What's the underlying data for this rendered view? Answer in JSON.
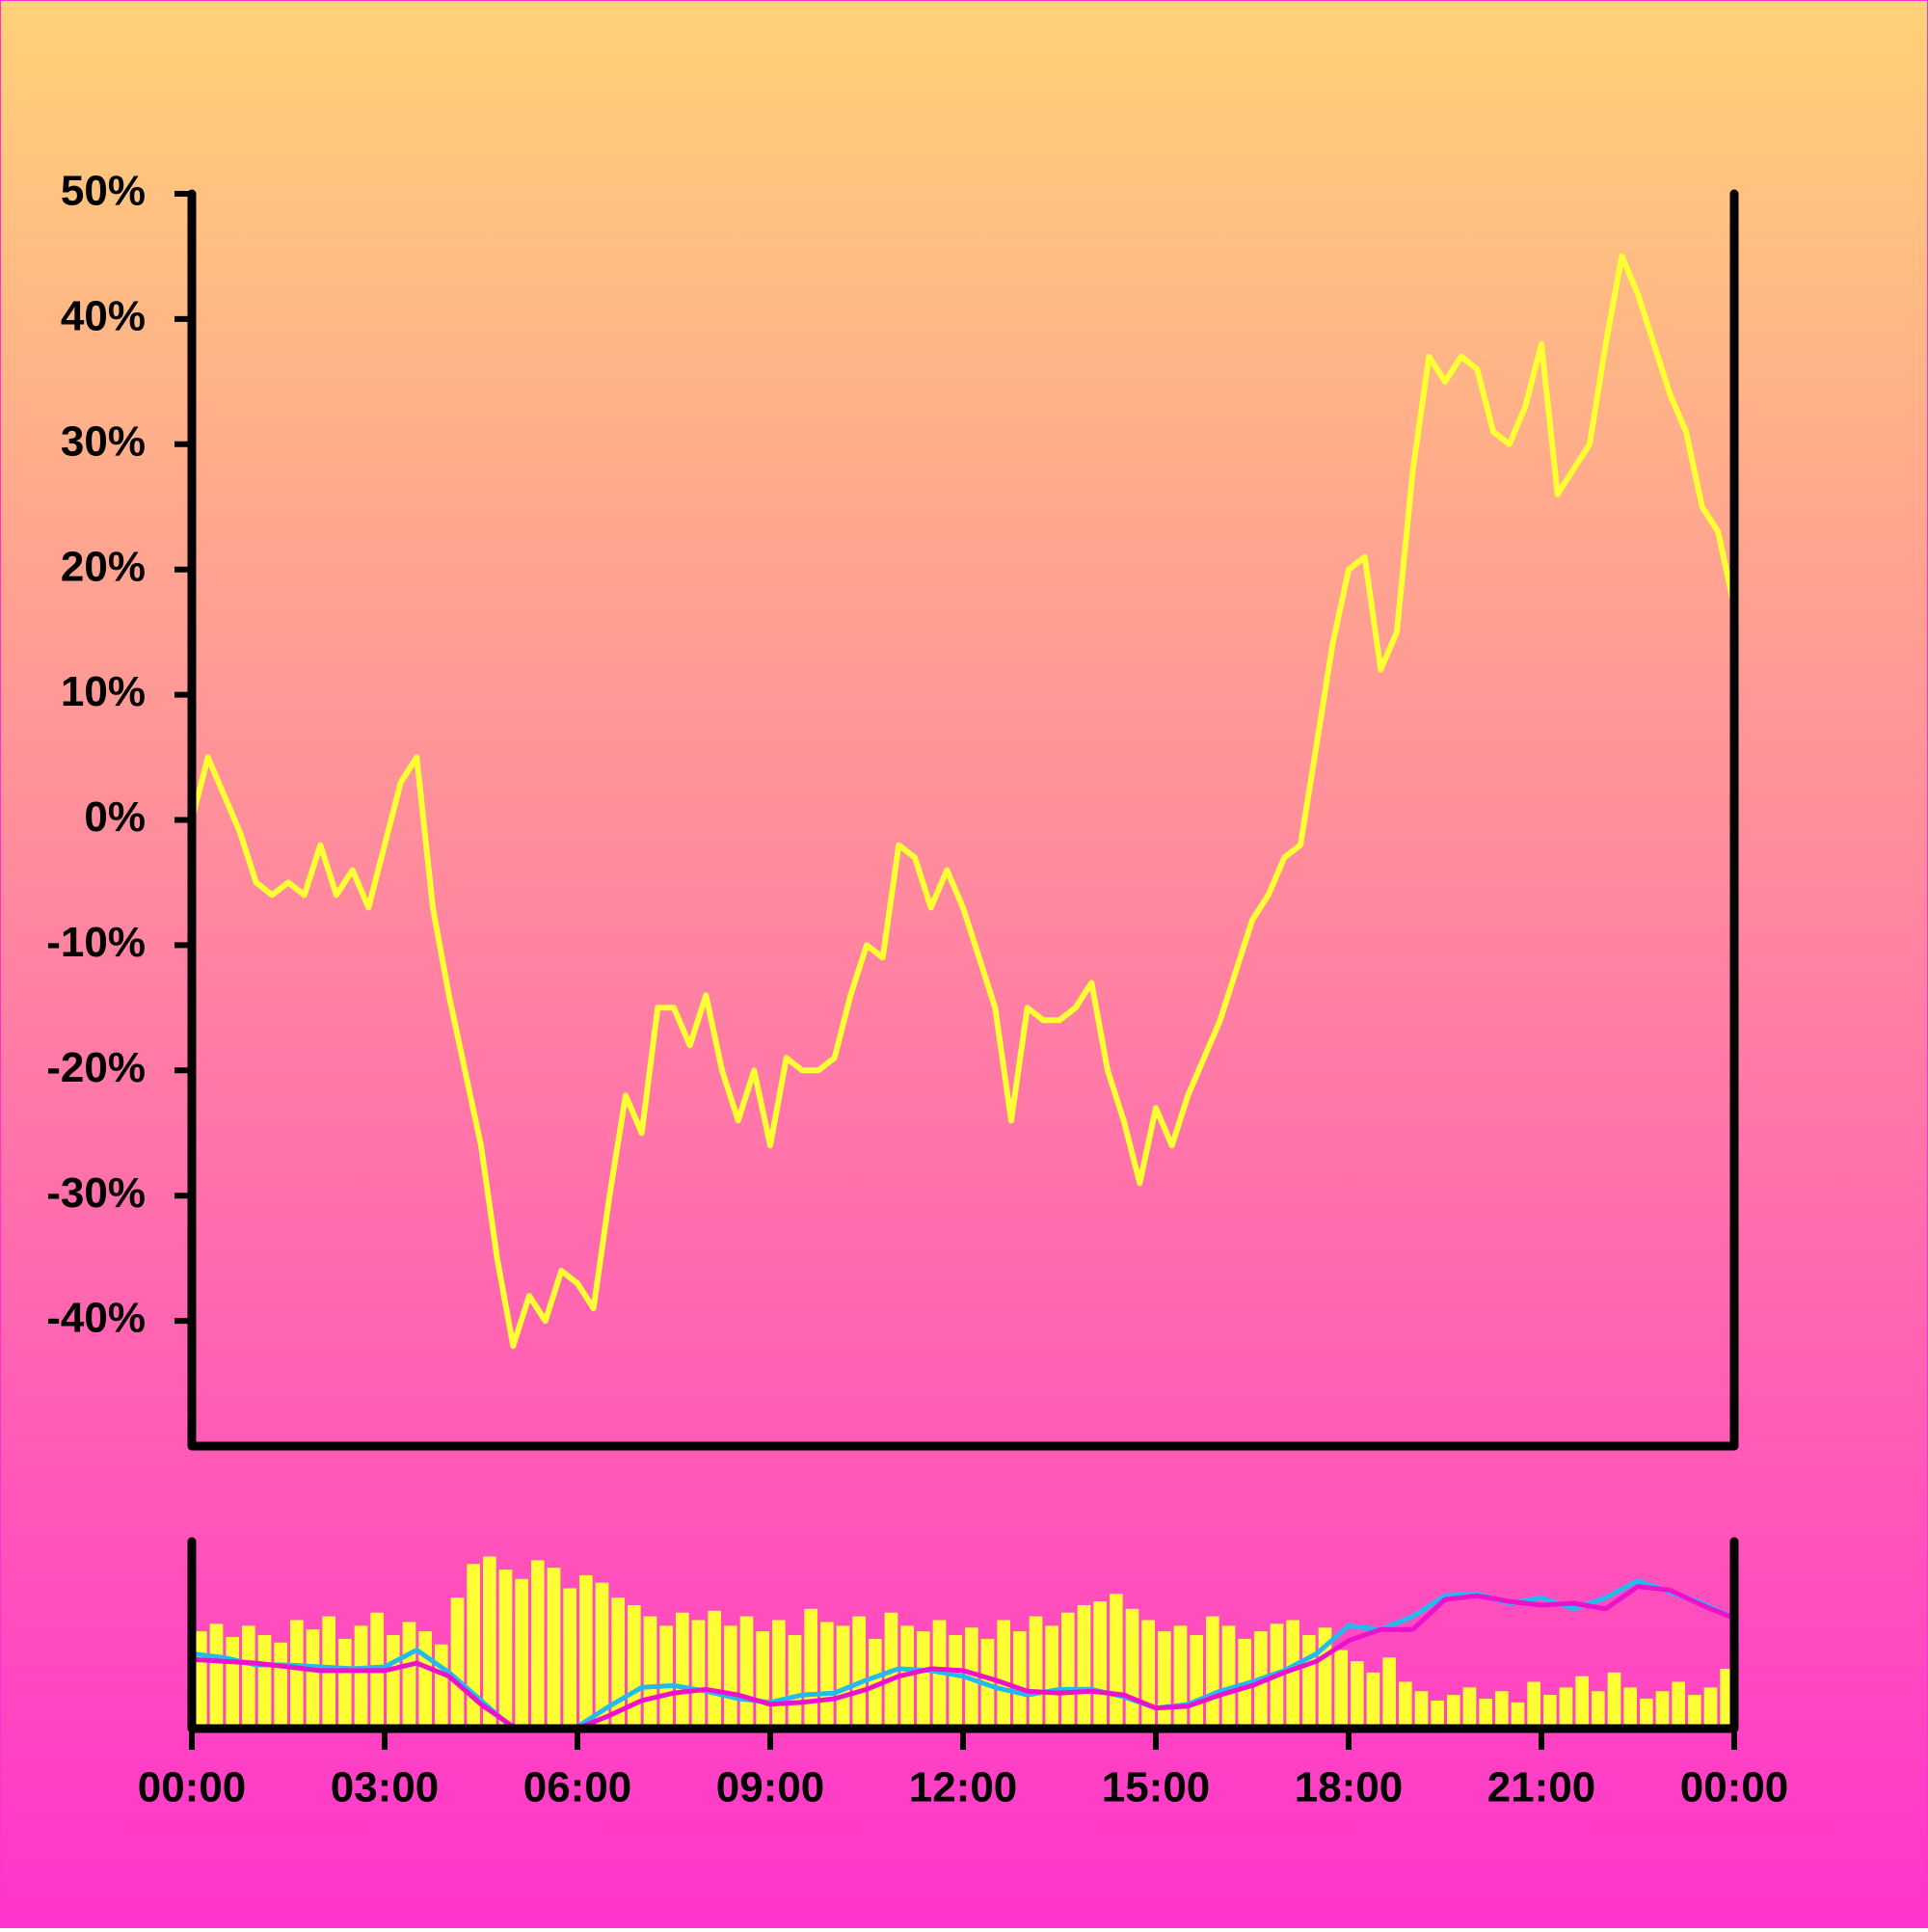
{
  "chart_data": [
    {
      "type": "line",
      "color": "#ffff33",
      "x": [
        0,
        0.25,
        0.5,
        0.75,
        1,
        1.25,
        1.5,
        1.75,
        2,
        2.25,
        2.5,
        2.75,
        3,
        3.25,
        3.5,
        3.75,
        4,
        4.25,
        4.5,
        4.75,
        5,
        5.25,
        5.5,
        5.75,
        6,
        6.25,
        6.5,
        6.75,
        7,
        7.25,
        7.5,
        7.75,
        8,
        8.25,
        8.5,
        8.75,
        9,
        9.25,
        9.5,
        9.75,
        10,
        10.25,
        10.5,
        10.75,
        11,
        11.25,
        11.5,
        11.75,
        12,
        12.25,
        12.5,
        12.75,
        13,
        13.25,
        13.5,
        13.75,
        14,
        14.25,
        14.5,
        14.75,
        15,
        15.25,
        15.5,
        15.75,
        16,
        16.25,
        16.5,
        16.75,
        17,
        17.25,
        17.5,
        17.75,
        18,
        18.25,
        18.5,
        18.75,
        19,
        19.25,
        19.5,
        19.75,
        20,
        20.25,
        20.5,
        20.75,
        21,
        21.25,
        21.5,
        21.75,
        22,
        22.25,
        22.5,
        22.75,
        23,
        23.25,
        23.5,
        23.75,
        24
      ],
      "values": [
        0,
        5,
        2,
        -1,
        -5,
        -6,
        -5,
        -6,
        -2,
        -6,
        -4,
        -7,
        -2,
        3,
        5,
        -7,
        -14,
        -20,
        -26,
        -35,
        -42,
        -38,
        -40,
        -36,
        -37,
        -39,
        -30,
        -22,
        -25,
        -15,
        -15,
        -18,
        -14,
        -20,
        -24,
        -20,
        -26,
        -19,
        -20,
        -20,
        -19,
        -14,
        -10,
        -11,
        -2,
        -3,
        -7,
        -4,
        -7,
        -11,
        -15,
        -24,
        -15,
        -16,
        -16,
        -15,
        -13,
        -20,
        -24,
        -29,
        -23,
        -26,
        -22,
        -19,
        -16,
        -12,
        -8,
        -6,
        -3,
        -2,
        6,
        14,
        20,
        21,
        12,
        15,
        28,
        37,
        35,
        37,
        36,
        31,
        30,
        33,
        38,
        26,
        28,
        30,
        38,
        45,
        42,
        38,
        34,
        31,
        25,
        23,
        17
      ],
      "xlim": [
        0,
        24
      ],
      "ylim": [
        -50,
        50
      ],
      "yticks": [
        {
          "value": -40,
          "label": "-40%"
        },
        {
          "value": -30,
          "label": "-30%"
        },
        {
          "value": -20,
          "label": "-20%"
        },
        {
          "value": -10,
          "label": "-10%"
        },
        {
          "value": 0,
          "label": "0%"
        },
        {
          "value": 10,
          "label": "10%"
        },
        {
          "value": 20,
          "label": "20%"
        },
        {
          "value": 30,
          "label": "30%"
        },
        {
          "value": 40,
          "label": "40%"
        },
        {
          "value": 50,
          "label": "50%"
        }
      ]
    },
    {
      "type": "bar",
      "color": "#ffff33",
      "x": [
        0,
        0.25,
        0.5,
        0.75,
        1,
        1.25,
        1.5,
        1.75,
        2,
        2.25,
        2.5,
        2.75,
        3,
        3.25,
        3.5,
        3.75,
        4,
        4.25,
        4.5,
        4.75,
        5,
        5.25,
        5.5,
        5.75,
        6,
        6.25,
        6.5,
        6.75,
        7,
        7.25,
        7.5,
        7.75,
        8,
        8.25,
        8.5,
        8.75,
        9,
        9.25,
        9.5,
        9.75,
        10,
        10.25,
        10.5,
        10.75,
        11,
        11.25,
        11.5,
        11.75,
        12,
        12.25,
        12.5,
        12.75,
        13,
        13.25,
        13.5,
        13.75,
        14,
        14.25,
        14.5,
        14.75,
        15,
        15.25,
        15.5,
        15.75,
        16,
        16.25,
        16.5,
        16.75,
        17,
        17.25,
        17.5,
        17.75,
        18,
        18.25,
        18.5,
        18.75,
        19,
        19.25,
        19.5,
        19.75,
        20,
        20.25,
        20.5,
        20.75,
        21,
        21.25,
        21.5,
        21.75,
        22,
        22.25,
        22.5,
        22.75,
        23,
        23.25,
        23.5,
        23.75
      ],
      "values": [
        52,
        56,
        49,
        55,
        50,
        46,
        58,
        53,
        60,
        48,
        55,
        62,
        50,
        57,
        52,
        45,
        70,
        88,
        92,
        85,
        80,
        90,
        86,
        75,
        82,
        78,
        70,
        66,
        60,
        55,
        62,
        58,
        63,
        55,
        60,
        52,
        58,
        50,
        64,
        57,
        55,
        60,
        48,
        62,
        55,
        52,
        58,
        50,
        54,
        48,
        58,
        52,
        60,
        55,
        62,
        66,
        68,
        72,
        64,
        58,
        52,
        55,
        50,
        60,
        55,
        48,
        52,
        56,
        58,
        50,
        54,
        42,
        36,
        30,
        38,
        25,
        20,
        15,
        18,
        22,
        16,
        20,
        14,
        25,
        18,
        22,
        28,
        20,
        30,
        22,
        16,
        20,
        25,
        18,
        22,
        32
      ],
      "line_x": [
        0,
        0.5,
        1,
        1.5,
        2,
        2.5,
        3,
        3.5,
        4,
        4.5,
        5,
        5.5,
        6,
        6.5,
        7,
        7.5,
        8,
        8.5,
        9,
        9.5,
        10,
        10.5,
        11,
        11.5,
        12,
        12.5,
        13,
        13.5,
        14,
        14.5,
        15,
        15.5,
        16,
        16.5,
        17,
        17.5,
        18,
        18.5,
        19,
        19.5,
        20,
        20.5,
        21,
        21.5,
        22,
        22.5,
        23,
        23.5,
        24
      ],
      "lines": [
        {
          "color": "#22bbee",
          "values": [
            40,
            38,
            34,
            34,
            33,
            32,
            33,
            42,
            30,
            15,
            0,
            0,
            1,
            12,
            22,
            23,
            20,
            16,
            14,
            18,
            19,
            26,
            32,
            31,
            28,
            22,
            18,
            21,
            21,
            17,
            11,
            13,
            20,
            25,
            31,
            40,
            55,
            53,
            60,
            71,
            72,
            67,
            70,
            64,
            70,
            79,
            73,
            67,
            59
          ]
        },
        {
          "color": "#ee11cc",
          "values": [
            37,
            36,
            35,
            33,
            31,
            31,
            31,
            35,
            28,
            13,
            1,
            0,
            0,
            7,
            15,
            19,
            21,
            18,
            13,
            14,
            16,
            21,
            28,
            32,
            31,
            26,
            20,
            19,
            20,
            18,
            11,
            12,
            18,
            23,
            30,
            36,
            47,
            53,
            53,
            69,
            71,
            68,
            66,
            67,
            64,
            76,
            74,
            66,
            59
          ]
        }
      ],
      "xlim": [
        0,
        24
      ],
      "ylim": [
        0,
        100
      ],
      "xticks": [
        {
          "value": 0,
          "label": "00:00"
        },
        {
          "value": 3,
          "label": "03:00"
        },
        {
          "value": 6,
          "label": "06:00"
        },
        {
          "value": 9,
          "label": "09:00"
        },
        {
          "value": 12,
          "label": "12:00"
        },
        {
          "value": 15,
          "label": "15:00"
        },
        {
          "value": 18,
          "label": "18:00"
        },
        {
          "value": 21,
          "label": "21:00"
        },
        {
          "value": 24,
          "label": "00:00"
        }
      ]
    }
  ]
}
